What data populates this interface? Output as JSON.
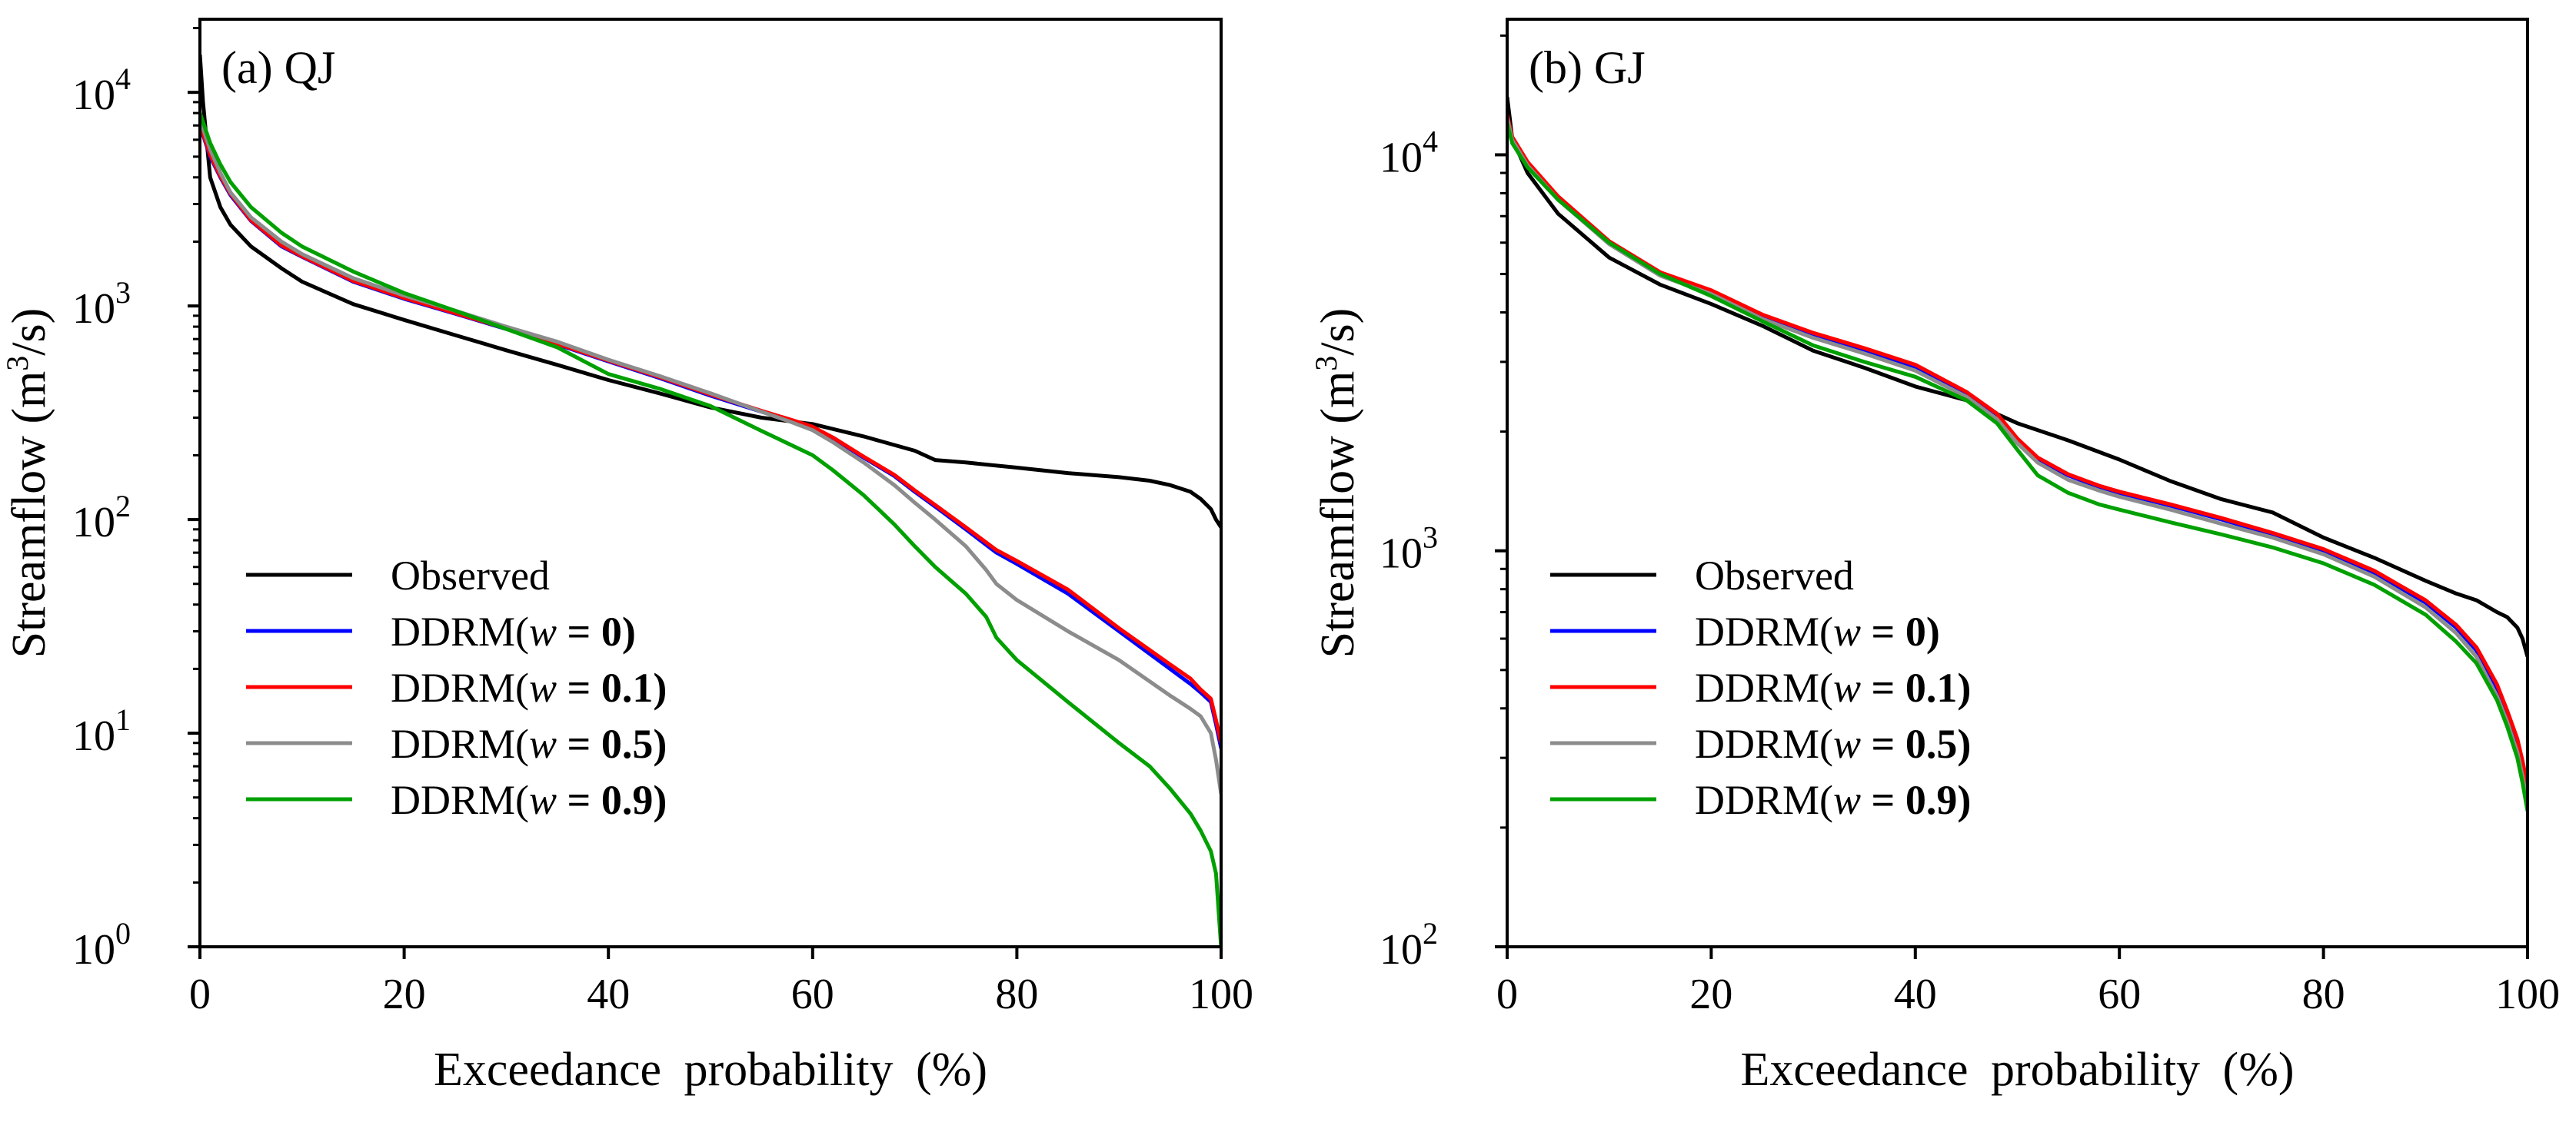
{
  "chart_data": [
    {
      "type": "line",
      "panel_label": "(a)",
      "title": "QJ",
      "xlabel": "Exceedance probability (%)",
      "ylabel_main": "Streamflow",
      "ylabel_unit_prefix": "(m",
      "ylabel_unit_sup": "3",
      "ylabel_unit_suffix": "/s)",
      "xlim": [
        0,
        100
      ],
      "ylim": [
        1,
        22000
      ],
      "yscale": "log",
      "xticks": [
        0,
        20,
        40,
        60,
        80,
        100
      ],
      "xtick_labels": [
        "0",
        "20",
        "40",
        "60",
        "80",
        "100"
      ],
      "ytick_base": "10",
      "yticks": [
        {
          "value": 1,
          "exponent": "0"
        },
        {
          "value": 10,
          "exponent": "1"
        },
        {
          "value": 100,
          "exponent": "2"
        },
        {
          "value": 1000,
          "exponent": "3"
        },
        {
          "value": 10000,
          "exponent": "4"
        }
      ],
      "grid": false,
      "legend_position": "lower-left",
      "series": [
        {
          "name": "Observed",
          "legend": {
            "prefix": "Observed",
            "var": "",
            "eq": "",
            "val": "",
            "close": ""
          },
          "color": "#000000",
          "x": [
            0,
            0.3,
            1,
            2,
            3,
            5,
            8,
            10,
            15,
            20,
            25,
            30,
            35,
            40,
            45,
            50,
            55,
            60,
            65,
            70,
            72,
            75,
            80,
            85,
            90,
            93,
            95,
            97,
            98,
            99,
            99.5,
            100
          ],
          "values": [
            15000,
            9000,
            4000,
            2900,
            2400,
            1900,
            1500,
            1300,
            1020,
            860,
            730,
            620,
            530,
            450,
            390,
            335,
            300,
            280,
            245,
            210,
            190,
            185,
            175,
            165,
            158,
            152,
            145,
            135,
            125,
            112,
            100,
            92
          ]
        },
        {
          "name": "DDRM(w=0)",
          "legend": {
            "prefix": "DDRM(",
            "var": "w",
            "eq": " = ",
            "val": "0",
            "close": ")"
          },
          "color": "#0000ff",
          "x": [
            0,
            1,
            2,
            3,
            5,
            8,
            10,
            15,
            20,
            25,
            30,
            35,
            40,
            45,
            50,
            55,
            58,
            60,
            62,
            65,
            68,
            70,
            72,
            75,
            78,
            80,
            85,
            90,
            95,
            97,
            98,
            99,
            99.5,
            100
          ],
          "values": [
            7000,
            5000,
            4000,
            3300,
            2500,
            1900,
            1700,
            1300,
            1080,
            920,
            780,
            660,
            550,
            460,
            380,
            320,
            290,
            270,
            240,
            195,
            160,
            135,
            115,
            90,
            70,
            62,
            45,
            30,
            20,
            17,
            15.5,
            14,
            11,
            8.5
          ]
        },
        {
          "name": "DDRM(w=0.1)",
          "legend": {
            "prefix": "DDRM(",
            "var": "w",
            "eq": " = ",
            "val": "0.1",
            "close": ")"
          },
          "color": "#ff0000",
          "x": [
            0,
            1,
            2,
            3,
            5,
            8,
            10,
            15,
            20,
            25,
            30,
            35,
            40,
            45,
            50,
            55,
            58,
            60,
            62,
            65,
            68,
            70,
            72,
            75,
            78,
            80,
            85,
            90,
            95,
            97,
            98,
            99,
            99.5,
            100
          ],
          "values": [
            7100,
            5100,
            4050,
            3350,
            2520,
            1920,
            1710,
            1310,
            1090,
            925,
            785,
            665,
            555,
            465,
            385,
            323,
            292,
            272,
            242,
            197,
            162,
            137,
            117,
            92,
            72,
            64,
            47,
            31,
            21,
            18,
            16,
            14.5,
            11.5,
            9
          ]
        },
        {
          "name": "DDRM(w=0.5)",
          "legend": {
            "prefix": "DDRM(",
            "var": "w",
            "eq": " = ",
            "val": "0.5",
            "close": ")"
          },
          "color": "#8c8c8c",
          "x": [
            0,
            1,
            2,
            3,
            5,
            8,
            10,
            15,
            20,
            25,
            30,
            35,
            40,
            45,
            50,
            55,
            58,
            60,
            62,
            65,
            68,
            70,
            72,
            75,
            77,
            78,
            80,
            85,
            90,
            95,
            97,
            98,
            99,
            99.5,
            100
          ],
          "values": [
            7500,
            5400,
            4200,
            3400,
            2600,
            2000,
            1750,
            1350,
            1120,
            950,
            800,
            680,
            560,
            470,
            390,
            320,
            285,
            262,
            230,
            185,
            145,
            120,
            100,
            75,
            58,
            50,
            42,
            30,
            22,
            15,
            13,
            12,
            10,
            7.5,
            5.2
          ]
        },
        {
          "name": "DDRM(w=0.9)",
          "legend": {
            "prefix": "DDRM(",
            "var": "w",
            "eq": " = ",
            "val": "0.9",
            "close": ")"
          },
          "color": "#00a000",
          "x": [
            0,
            1,
            2,
            3,
            5,
            8,
            10,
            15,
            20,
            25,
            30,
            35,
            40,
            45,
            50,
            55,
            60,
            62,
            65,
            68,
            70,
            72,
            75,
            77,
            78,
            80,
            85,
            90,
            93,
            95,
            97,
            98,
            99,
            99.5,
            100
          ],
          "values": [
            8000,
            5800,
            4600,
            3800,
            2900,
            2200,
            1900,
            1450,
            1150,
            950,
            780,
            640,
            480,
            410,
            340,
            260,
            200,
            170,
            130,
            95,
            75,
            60,
            45,
            35,
            28,
            22,
            14,
            9,
            7,
            5.5,
            4.2,
            3.5,
            2.8,
            2.2,
            1.0
          ]
        }
      ]
    },
    {
      "type": "line",
      "panel_label": "(b)",
      "title": "GJ",
      "xlabel": "Exceedance probability (%)",
      "ylabel_main": "Streamflow",
      "ylabel_unit_prefix": "(m",
      "ylabel_unit_sup": "3",
      "ylabel_unit_suffix": "/s)",
      "xlim": [
        0,
        100
      ],
      "ylim": [
        100,
        22000
      ],
      "yscale": "log",
      "xticks": [
        0,
        20,
        40,
        60,
        80,
        100
      ],
      "xtick_labels": [
        "0",
        "20",
        "40",
        "60",
        "80",
        "100"
      ],
      "ytick_base": "10",
      "yticks": [
        {
          "value": 100,
          "exponent": "2"
        },
        {
          "value": 1000,
          "exponent": "3"
        },
        {
          "value": 10000,
          "exponent": "4"
        }
      ],
      "grid": false,
      "legend_position": "lower-left",
      "series": [
        {
          "name": "Observed",
          "legend": {
            "prefix": "Observed",
            "var": "",
            "eq": "",
            "val": "",
            "close": ""
          },
          "color": "#000000",
          "x": [
            0,
            0.5,
            2,
            5,
            10,
            15,
            20,
            25,
            30,
            35,
            40,
            45,
            50,
            55,
            60,
            65,
            70,
            75,
            80,
            85,
            90,
            93,
            95,
            97,
            98,
            99,
            99.5,
            100
          ],
          "values": [
            14000,
            11000,
            9000,
            7100,
            5500,
            4700,
            4200,
            3700,
            3200,
            2900,
            2600,
            2400,
            2100,
            1900,
            1700,
            1500,
            1350,
            1250,
            1080,
            960,
            840,
            780,
            750,
            700,
            680,
            640,
            600,
            540
          ]
        },
        {
          "name": "DDRM(w=0)",
          "legend": {
            "prefix": "DDRM(",
            "var": "w",
            "eq": " = ",
            "val": "0",
            "close": ")"
          },
          "color": "#0000ff",
          "x": [
            0,
            0.5,
            2,
            5,
            10,
            15,
            20,
            25,
            30,
            35,
            40,
            45,
            48,
            50,
            52,
            55,
            58,
            60,
            65,
            70,
            75,
            80,
            85,
            90,
            93,
            95,
            97,
            98,
            99,
            99.5,
            100
          ],
          "values": [
            12500,
            11000,
            9500,
            7800,
            6000,
            5000,
            4500,
            3900,
            3500,
            3200,
            2900,
            2500,
            2200,
            1900,
            1700,
            1550,
            1450,
            1400,
            1300,
            1200,
            1100,
            1000,
            880,
            740,
            640,
            560,
            450,
            390,
            330,
            290,
            250
          ]
        },
        {
          "name": "DDRM(w=0.1)",
          "legend": {
            "prefix": "DDRM(",
            "var": "w",
            "eq": " = ",
            "val": "0.1",
            "close": ")"
          },
          "color": "#ff0000",
          "x": [
            0,
            0.5,
            2,
            5,
            10,
            15,
            20,
            25,
            30,
            35,
            40,
            45,
            48,
            50,
            52,
            55,
            58,
            60,
            65,
            70,
            75,
            80,
            85,
            90,
            93,
            95,
            97,
            98,
            99,
            99.5,
            100
          ],
          "values": [
            12600,
            11100,
            9600,
            7850,
            6050,
            5050,
            4550,
            3950,
            3550,
            3250,
            2950,
            2520,
            2220,
            1920,
            1720,
            1560,
            1460,
            1410,
            1310,
            1210,
            1110,
            1010,
            890,
            750,
            650,
            570,
            460,
            395,
            335,
            295,
            255
          ]
        },
        {
          "name": "DDRM(w=0.5)",
          "legend": {
            "prefix": "DDRM(",
            "var": "w",
            "eq": " = ",
            "val": "0.5",
            "close": ")"
          },
          "color": "#8c8c8c",
          "x": [
            0,
            0.5,
            2,
            5,
            10,
            15,
            20,
            25,
            30,
            35,
            40,
            45,
            48,
            50,
            52,
            55,
            58,
            60,
            65,
            70,
            75,
            80,
            85,
            90,
            93,
            95,
            97,
            98,
            99,
            99.5,
            100
          ],
          "values": [
            12400,
            10900,
            9400,
            7700,
            5950,
            4950,
            4450,
            3850,
            3450,
            3150,
            2850,
            2450,
            2150,
            1870,
            1670,
            1510,
            1420,
            1370,
            1270,
            1170,
            1080,
            980,
            860,
            720,
            620,
            540,
            430,
            370,
            310,
            270,
            230
          ]
        },
        {
          "name": "DDRM(w=0.9)",
          "legend": {
            "prefix": "DDRM(",
            "var": "w",
            "eq": " = ",
            "val": "0.9",
            "close": ")"
          },
          "color": "#00a000",
          "x": [
            0,
            0.5,
            2,
            5,
            10,
            15,
            20,
            25,
            30,
            35,
            40,
            45,
            48,
            50,
            52,
            55,
            58,
            60,
            65,
            70,
            75,
            80,
            85,
            90,
            93,
            95,
            97,
            98,
            99,
            99.5,
            100
          ],
          "values": [
            12000,
            10700,
            9300,
            7700,
            6000,
            5000,
            4400,
            3800,
            3300,
            3000,
            2750,
            2400,
            2100,
            1800,
            1550,
            1400,
            1310,
            1270,
            1180,
            1100,
            1020,
            930,
            820,
            690,
            590,
            520,
            420,
            360,
            300,
            260,
            220
          ]
        }
      ]
    }
  ]
}
